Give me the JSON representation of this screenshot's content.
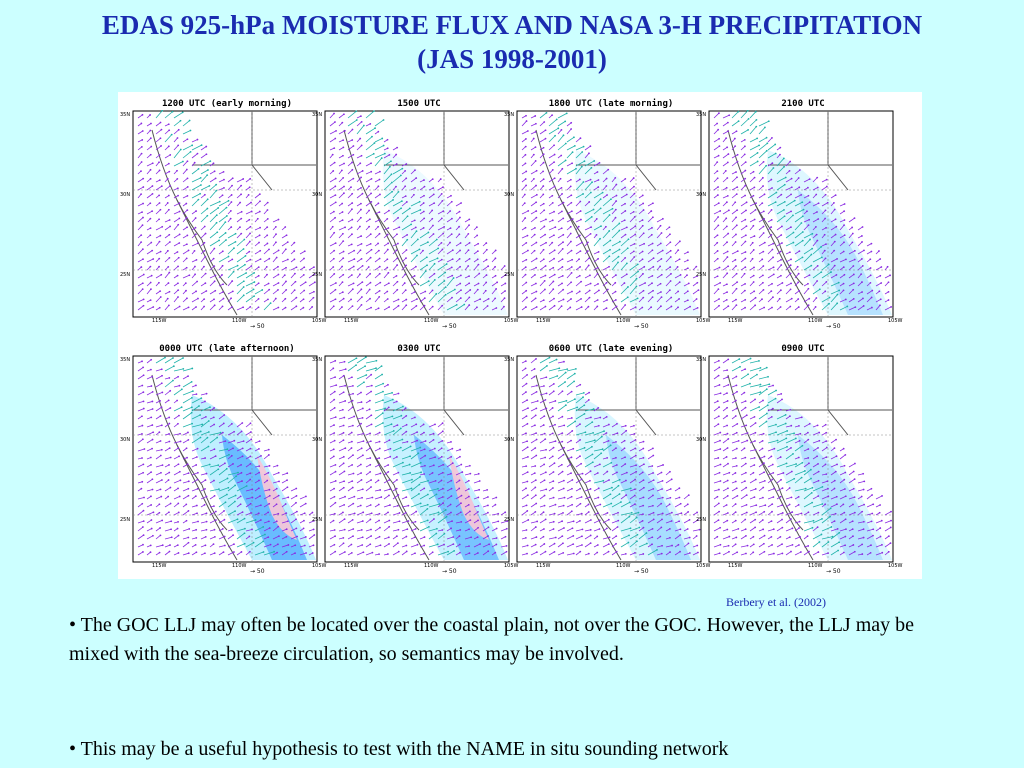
{
  "title_line1": "EDAS 925-hPa MOISTURE FLUX AND NASA 3-H PRECIPITATION",
  "title_line2": "(JAS 1998-2001)",
  "panels": [
    {
      "label": "1200 UTC (early morning)",
      "precip": 0
    },
    {
      "label": "1500 UTC",
      "precip": 0.05
    },
    {
      "label": "1800 UTC (late morning)",
      "precip": 0.1
    },
    {
      "label": "2100 UTC",
      "precip": 0.35
    },
    {
      "label": "0000 UTC (late afternoon)",
      "precip": 1.0
    },
    {
      "label": "0300 UTC",
      "precip": 0.85
    },
    {
      "label": "0600 UTC (late evening)",
      "precip": 0.45
    },
    {
      "label": "0900 UTC",
      "precip": 0.35
    }
  ],
  "lat_labels": [
    "35N",
    "30N",
    "25N"
  ],
  "lon_labels": [
    "115W",
    "110W",
    "105W"
  ],
  "scale_label": "50",
  "citation": "Berbery et al. (2002)",
  "bullets": [
    "• The GOC LLJ may often be located over the coastal plain, not over the GOC. However, the LLJ may be mixed with the sea-breeze circulation, so semantics may be involved.",
    "• This may be a useful hypothesis to test with the NAME in situ sounding network"
  ],
  "colors": {
    "title": "#1a2bb0",
    "background": "#ccffff",
    "vector_primary": "#8a2be2",
    "vector_strong": "#20b2aa",
    "precip_light": "#bfefff",
    "precip_mid": "#5fb6ff",
    "precip_heavy": "#f4c6d8"
  }
}
